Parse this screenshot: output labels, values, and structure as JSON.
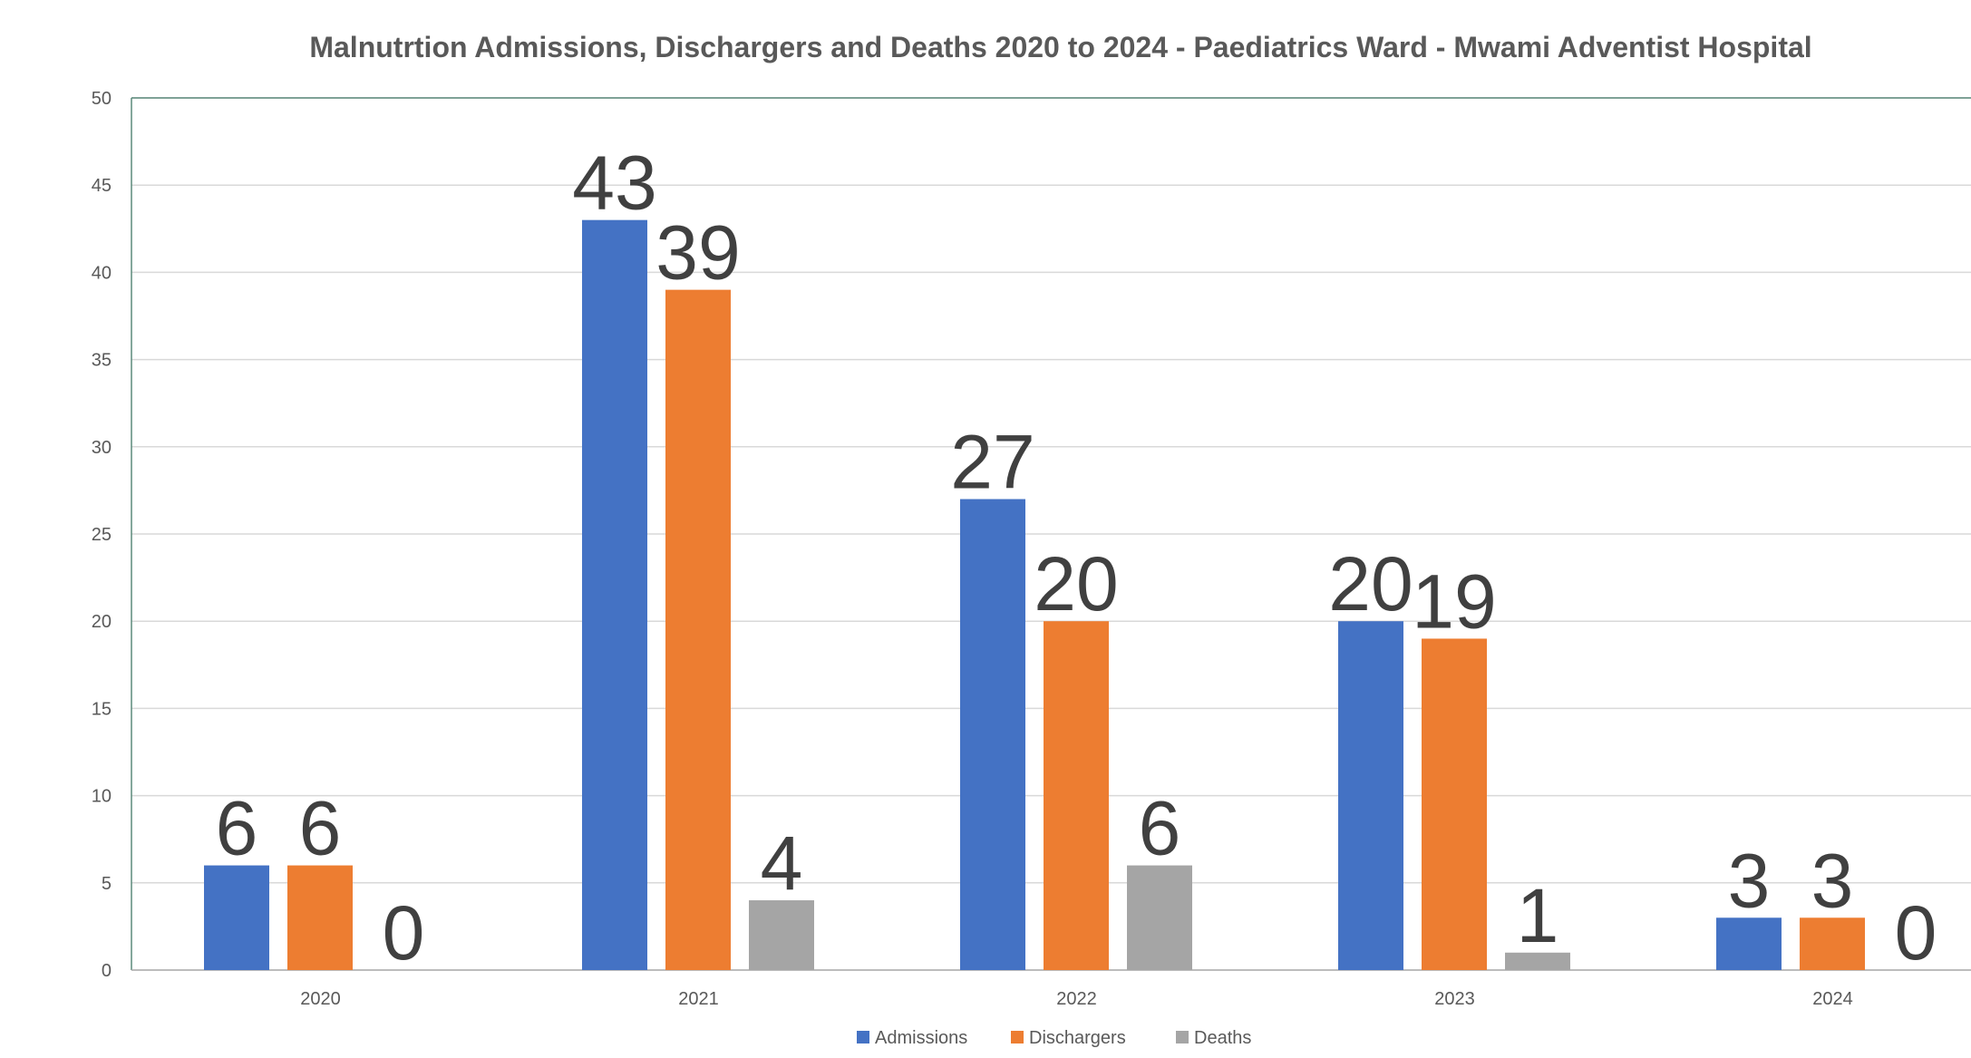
{
  "chart_data": {
    "type": "bar",
    "title": "Malnutrtion Admissions, Dischargers and Deaths 2020 to 2024 - Paediatrics Ward - Mwami Adventist Hospital",
    "xlabel": "",
    "ylabel": "",
    "categories": [
      "2020",
      "2021",
      "2022",
      "2023",
      "2024"
    ],
    "ylim": [
      0,
      50
    ],
    "ytick_step": 5,
    "grid": true,
    "legend_position": "bottom",
    "data_labels": true,
    "series": [
      {
        "name": "Admissions",
        "color": "#4472C4",
        "values": [
          6,
          43,
          27,
          20,
          3
        ]
      },
      {
        "name": "Dischargers",
        "color": "#ED7D31",
        "values": [
          6,
          39,
          20,
          19,
          3
        ]
      },
      {
        "name": "Deaths",
        "color": "#A5A5A5",
        "values": [
          0,
          4,
          6,
          1,
          0
        ]
      }
    ],
    "colors": {
      "gridline": "#D9D9D9",
      "axis": "#A6A6A6",
      "plot_border": "#5B8A7B",
      "tick_label": "#595959",
      "title": "#595959",
      "data_label": "#404040"
    }
  }
}
